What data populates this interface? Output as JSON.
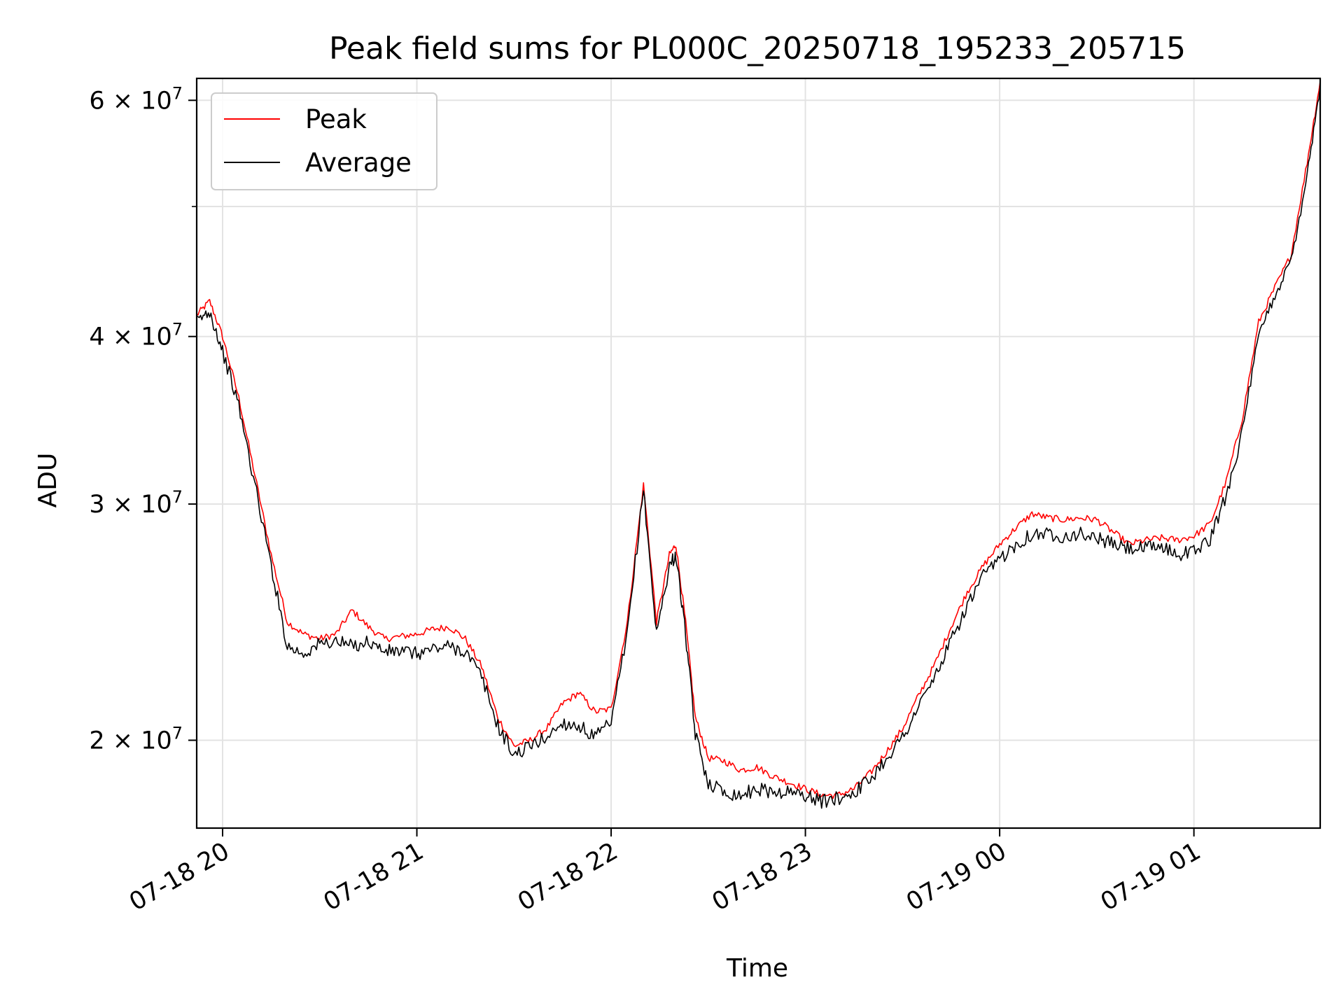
{
  "chart_data": {
    "type": "line",
    "title": "Peak field sums for PL000C_20250718_195233_205715",
    "xlabel": "Time",
    "ylabel": "ADU",
    "y_scale": "log",
    "ylim": [
      17200000,
      62300000
    ],
    "xlim": [
      "2025-07-18 19:52",
      "2025-07-19 01:39"
    ],
    "grid": true,
    "legend": "top-left",
    "x_ticks": [
      {
        "t": "2025-07-18 20:00",
        "label": "07-18 20"
      },
      {
        "t": "2025-07-18 21:00",
        "label": "07-18 21"
      },
      {
        "t": "2025-07-18 22:00",
        "label": "07-18 22"
      },
      {
        "t": "2025-07-18 23:00",
        "label": "07-18 23"
      },
      {
        "t": "2025-07-19 00:00",
        "label": "07-19 00"
      },
      {
        "t": "2025-07-19 01:00",
        "label": "07-19 01"
      }
    ],
    "y_ticks": [
      {
        "value": 20000000,
        "mantissa": "2",
        "label": "2 × 10^7"
      },
      {
        "value": 30000000,
        "mantissa": "3",
        "label": "3 × 10^7"
      },
      {
        "value": 40000000,
        "mantissa": "4",
        "label": "4 × 10^7"
      },
      {
        "value": 60000000,
        "mantissa": "6",
        "label": "6 × 10^7"
      }
    ],
    "y_minor_ticks": [
      50000000
    ],
    "series": [
      {
        "name": "Peak",
        "color": "#ff0000",
        "x": [
          "2025-07-18 19:52",
          "2025-07-18 19:56",
          "2025-07-18 20:00",
          "2025-07-18 20:05",
          "2025-07-18 20:10",
          "2025-07-18 20:15",
          "2025-07-18 20:20",
          "2025-07-18 20:25",
          "2025-07-18 20:30",
          "2025-07-18 20:35",
          "2025-07-18 20:40",
          "2025-07-18 20:45",
          "2025-07-18 20:50",
          "2025-07-18 20:55",
          "2025-07-18 21:00",
          "2025-07-18 21:05",
          "2025-07-18 21:10",
          "2025-07-18 21:15",
          "2025-07-18 21:20",
          "2025-07-18 21:25",
          "2025-07-18 21:30",
          "2025-07-18 21:35",
          "2025-07-18 21:40",
          "2025-07-18 21:45",
          "2025-07-18 21:50",
          "2025-07-18 21:55",
          "2025-07-18 22:00",
          "2025-07-18 22:05",
          "2025-07-18 22:10",
          "2025-07-18 22:14",
          "2025-07-18 22:18",
          "2025-07-18 22:20",
          "2025-07-18 22:23",
          "2025-07-18 22:26",
          "2025-07-18 22:30",
          "2025-07-18 22:35",
          "2025-07-18 22:40",
          "2025-07-18 22:45",
          "2025-07-18 22:50",
          "2025-07-18 22:55",
          "2025-07-18 23:00",
          "2025-07-18 23:05",
          "2025-07-18 23:10",
          "2025-07-18 23:15",
          "2025-07-18 23:20",
          "2025-07-18 23:25",
          "2025-07-18 23:30",
          "2025-07-18 23:35",
          "2025-07-18 23:40",
          "2025-07-18 23:45",
          "2025-07-18 23:50",
          "2025-07-18 23:55",
          "2025-07-19 00:00",
          "2025-07-19 00:05",
          "2025-07-19 00:10",
          "2025-07-19 00:15",
          "2025-07-19 00:20",
          "2025-07-19 00:25",
          "2025-07-19 00:30",
          "2025-07-19 00:35",
          "2025-07-19 00:40",
          "2025-07-19 00:45",
          "2025-07-19 00:50",
          "2025-07-19 00:55",
          "2025-07-19 01:00",
          "2025-07-19 01:05",
          "2025-07-19 01:10",
          "2025-07-19 01:15",
          "2025-07-19 01:20",
          "2025-07-19 01:25",
          "2025-07-19 01:30",
          "2025-07-19 01:35",
          "2025-07-19 01:39"
        ],
        "values": [
          41500000,
          42500000,
          40000000,
          36000000,
          31500000,
          27500000,
          24500000,
          24000000,
          23800000,
          24000000,
          25000000,
          24300000,
          23800000,
          23900000,
          24000000,
          24200000,
          24300000,
          23800000,
          22700000,
          20800000,
          19800000,
          20000000,
          20400000,
          21300000,
          21700000,
          21000000,
          21100000,
          24500000,
          31000000,
          24500000,
          27500000,
          28000000,
          24500000,
          20800000,
          19400000,
          19300000,
          19000000,
          19100000,
          18800000,
          18600000,
          18400000,
          18200000,
          18200000,
          18400000,
          18900000,
          19600000,
          20400000,
          21600000,
          22800000,
          24300000,
          25800000,
          27000000,
          28000000,
          28800000,
          29500000,
          29300000,
          29200000,
          29300000,
          29200000,
          28600000,
          28000000,
          28200000,
          28300000,
          28200000,
          28400000,
          29000000,
          31200000,
          34800000,
          41000000,
          43500000,
          46000000,
          54000000,
          62000000
        ]
      },
      {
        "name": "Average",
        "color": "#000000",
        "x": [
          "2025-07-18 19:52",
          "2025-07-18 19:56",
          "2025-07-18 20:00",
          "2025-07-18 20:05",
          "2025-07-18 20:10",
          "2025-07-18 20:15",
          "2025-07-18 20:20",
          "2025-07-18 20:25",
          "2025-07-18 20:30",
          "2025-07-18 20:35",
          "2025-07-18 20:40",
          "2025-07-18 20:45",
          "2025-07-18 20:50",
          "2025-07-18 20:55",
          "2025-07-18 21:00",
          "2025-07-18 21:05",
          "2025-07-18 21:10",
          "2025-07-18 21:15",
          "2025-07-18 21:20",
          "2025-07-18 21:25",
          "2025-07-18 21:30",
          "2025-07-18 21:35",
          "2025-07-18 21:40",
          "2025-07-18 21:45",
          "2025-07-18 21:50",
          "2025-07-18 21:55",
          "2025-07-18 22:00",
          "2025-07-18 22:05",
          "2025-07-18 22:10",
          "2025-07-18 22:14",
          "2025-07-18 22:18",
          "2025-07-18 22:20",
          "2025-07-18 22:23",
          "2025-07-18 22:26",
          "2025-07-18 22:30",
          "2025-07-18 22:35",
          "2025-07-18 22:40",
          "2025-07-18 22:45",
          "2025-07-18 22:50",
          "2025-07-18 22:55",
          "2025-07-18 23:00",
          "2025-07-18 23:05",
          "2025-07-18 23:10",
          "2025-07-18 23:15",
          "2025-07-18 23:20",
          "2025-07-18 23:25",
          "2025-07-18 23:30",
          "2025-07-18 23:35",
          "2025-07-18 23:40",
          "2025-07-18 23:45",
          "2025-07-18 23:50",
          "2025-07-18 23:55",
          "2025-07-19 00:00",
          "2025-07-19 00:05",
          "2025-07-19 00:10",
          "2025-07-19 00:15",
          "2025-07-19 00:20",
          "2025-07-19 00:25",
          "2025-07-19 00:30",
          "2025-07-19 00:35",
          "2025-07-19 00:40",
          "2025-07-19 00:45",
          "2025-07-19 00:50",
          "2025-07-19 00:55",
          "2025-07-19 01:00",
          "2025-07-19 01:05",
          "2025-07-19 01:10",
          "2025-07-19 01:15",
          "2025-07-19 01:20",
          "2025-07-19 01:25",
          "2025-07-19 01:30",
          "2025-07-19 01:35",
          "2025-07-19 01:39"
        ],
        "values": [
          41000000,
          41800000,
          39000000,
          35500000,
          31000000,
          27000000,
          23500000,
          23200000,
          23600000,
          23700000,
          23500000,
          23700000,
          23300000,
          23300000,
          23200000,
          23400000,
          23500000,
          23300000,
          22300000,
          20500000,
          19500000,
          19800000,
          20100000,
          20600000,
          20500000,
          20100000,
          20600000,
          24000000,
          30800000,
          24000000,
          27000000,
          27500000,
          24000000,
          20200000,
          18600000,
          18300000,
          18200000,
          18400000,
          18300000,
          18300000,
          18200000,
          18000000,
          18100000,
          18300000,
          18700000,
          19400000,
          20100000,
          21200000,
          22300000,
          23700000,
          25200000,
          26500000,
          27300000,
          28000000,
          28500000,
          28500000,
          28400000,
          28500000,
          28300000,
          28000000,
          27800000,
          27800000,
          27900000,
          27500000,
          27700000,
          28200000,
          30500000,
          34000000,
          40000000,
          43000000,
          45500000,
          53000000,
          61500000
        ]
      }
    ],
    "legend_entries": [
      "Peak",
      "Average"
    ]
  }
}
